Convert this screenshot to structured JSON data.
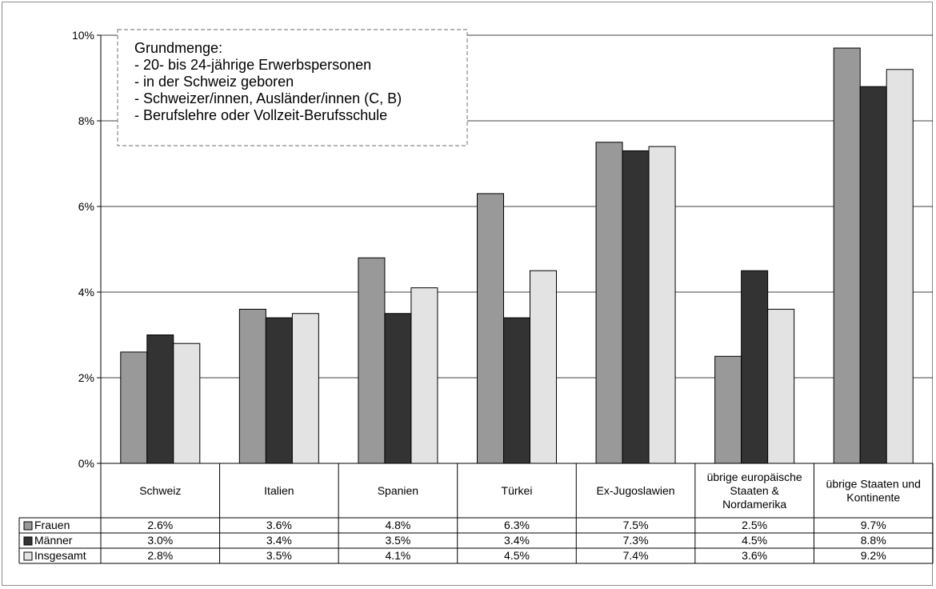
{
  "chart_data": {
    "type": "bar",
    "categories": [
      [
        "Schweiz"
      ],
      [
        "Italien"
      ],
      [
        "Spanien"
      ],
      [
        "Türkei"
      ],
      [
        "Ex-Jugoslawien"
      ],
      [
        "übrige europäische",
        "Staaten &",
        "Nordamerika"
      ],
      [
        "übrige Staaten und",
        "Kontinente"
      ]
    ],
    "series": [
      {
        "name": "Frauen",
        "values": [
          2.6,
          3.6,
          4.8,
          6.3,
          7.5,
          2.5,
          9.7
        ],
        "labels": [
          "2.6%",
          "3.6%",
          "4.8%",
          "6.3%",
          "7.5%",
          "2.5%",
          "9.7%"
        ],
        "color": "#999999"
      },
      {
        "name": "Männer",
        "values": [
          3.0,
          3.4,
          3.5,
          3.4,
          7.3,
          4.5,
          8.8
        ],
        "labels": [
          "3.0%",
          "3.4%",
          "3.5%",
          "3.4%",
          "7.3%",
          "4.5%",
          "8.8%"
        ],
        "color": "#333333"
      },
      {
        "name": "Insgesamt",
        "values": [
          2.8,
          3.5,
          4.1,
          4.5,
          7.4,
          3.6,
          9.2
        ],
        "labels": [
          "2.8%",
          "3.5%",
          "4.1%",
          "4.5%",
          "7.4%",
          "3.6%",
          "9.2%"
        ],
        "color": "#e3e3e3"
      }
    ],
    "ylim": [
      0,
      10
    ],
    "yticks": [
      0,
      2,
      4,
      6,
      8,
      10
    ],
    "ytick_labels": [
      "0%",
      "2%",
      "4%",
      "6%",
      "8%",
      "10%"
    ],
    "grid": true,
    "legend": "data table"
  },
  "annotation": {
    "lines": [
      "Grundmenge:",
      "- 20- bis 24-jährige Erwerbspersonen",
      "- in der Schweiz geboren",
      "- Schweizer/innen, Ausländer/innen (C, B)",
      "- Berufslehre oder Vollzeit-Berufsschule"
    ]
  }
}
